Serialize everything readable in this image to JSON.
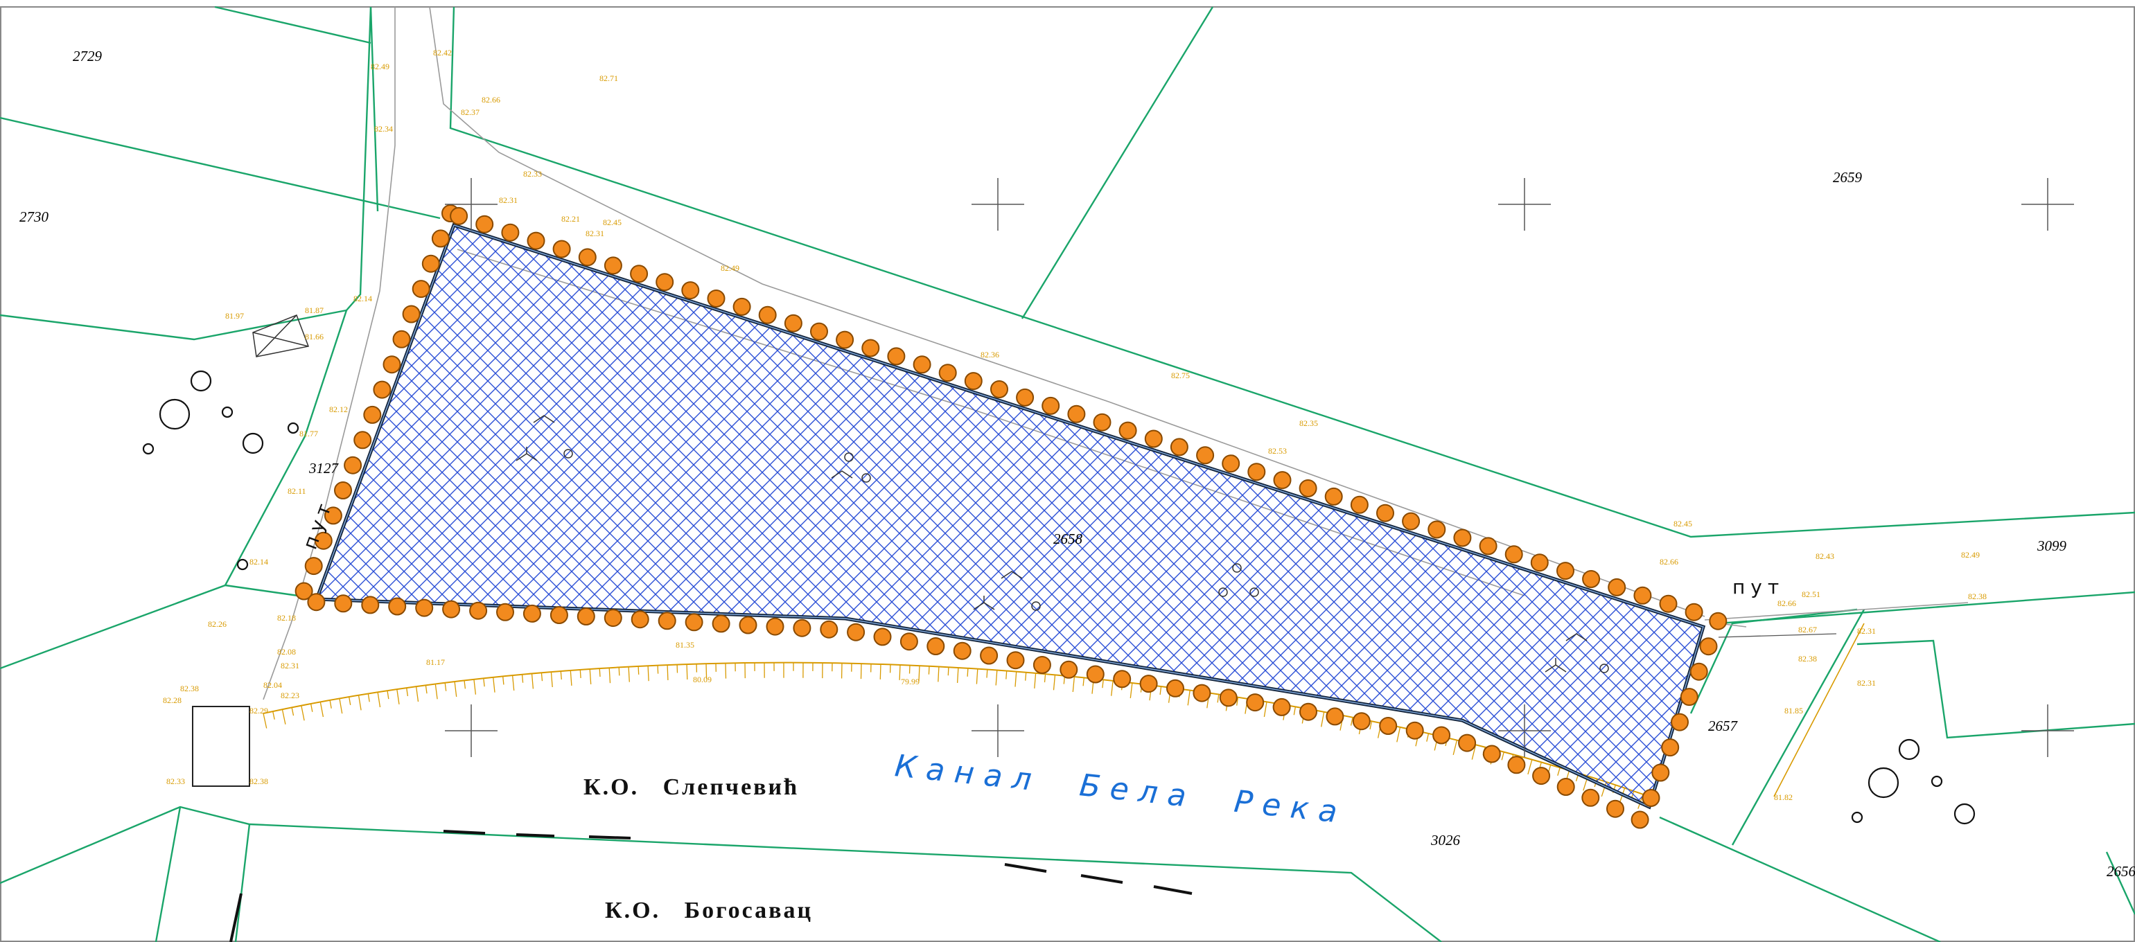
{
  "parcels": [
    {
      "id": "2729",
      "label": "2729"
    },
    {
      "id": "2730",
      "label": "2730"
    },
    {
      "id": "2659",
      "label": "2659"
    },
    {
      "id": "3127",
      "label": "3127"
    },
    {
      "id": "2658",
      "label": "2658"
    },
    {
      "id": "3099",
      "label": "3099"
    },
    {
      "id": "2657",
      "label": "2657"
    },
    {
      "id": "3026",
      "label": "3026"
    },
    {
      "id": "2656",
      "label": "2656"
    }
  ],
  "labels": {
    "ko_top": "К.О.   Слепчевић",
    "ko_bottom": "К.О.   Богосавац",
    "canal": "Канал  Бела  Река",
    "road_left": "пут",
    "road_right": "пут"
  },
  "elevations": [
    "82.49",
    "82.42",
    "82.71",
    "82.66",
    "82.37",
    "82.34",
    "82.33",
    "82.31",
    "82.21",
    "82.45",
    "82.31",
    "82.49",
    "82.14",
    "81.97",
    "81.87",
    "81.66",
    "82.12",
    "81.77",
    "82.11",
    "82.14",
    "82.26",
    "82.08",
    "82.31",
    "82.36",
    "82.75",
    "82.35",
    "82.45",
    "82.66",
    "82.43",
    "82.49",
    "82.66",
    "82.51",
    "82.38",
    "82.67",
    "82.31",
    "82.38",
    "82.31",
    "81.85",
    "81.82",
    "82.38",
    "82.28",
    "82.04",
    "82.29",
    "82.33",
    "82.38",
    "81.17",
    "81.35",
    "80.09",
    "79.99",
    "82.18",
    "82.23",
    "82.53"
  ],
  "colors": {
    "parcel_line": "#1aa56a",
    "polygon_outline": "#12233a",
    "hatch": "#2b4fd6",
    "marker_fill": "#f28a1e",
    "marker_stroke": "#8a4a00",
    "elevation_text": "#d89a00",
    "canal_text": "#1a6fd6"
  },
  "icons": [
    "survey-crosshair-icon",
    "tree-symbol-icon",
    "boundary-marker-icon",
    "small-circle-icon"
  ]
}
